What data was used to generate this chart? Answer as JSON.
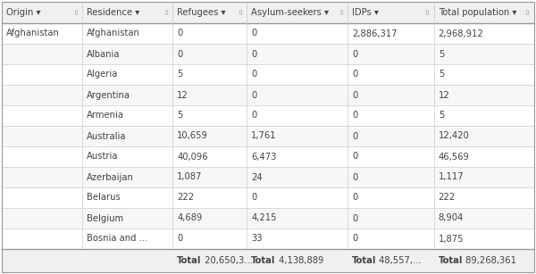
{
  "columns": [
    "Origin",
    "Residence",
    "Refugees",
    "Asylum-seekers",
    "IDPs",
    "Total population"
  ],
  "col_props": [
    0.138,
    0.155,
    0.127,
    0.173,
    0.148,
    0.172
  ],
  "header_bg": "#f0f0f0",
  "header_text_color": "#444444",
  "row_bg_even": "#ffffff",
  "row_bg_odd": "#f7f7f7",
  "footer_bg": "#f0f0f0",
  "border_color": "#cccccc",
  "thick_border_color": "#999999",
  "text_color": "#444444",
  "rows": [
    [
      "Afghanistan",
      "Afghanistan",
      "0",
      "0",
      "2,886,317",
      "2,968,912"
    ],
    [
      "",
      "Albania",
      "0",
      "0",
      "0",
      "5"
    ],
    [
      "",
      "Algeria",
      "5",
      "0",
      "0",
      "5"
    ],
    [
      "",
      "Argentina",
      "12",
      "0",
      "0",
      "12"
    ],
    [
      "",
      "Armenia",
      "5",
      "0",
      "0",
      "5"
    ],
    [
      "",
      "Australia",
      "10,659",
      "1,761",
      "0",
      "12,420"
    ],
    [
      "",
      "Austria",
      "40,096",
      "6,473",
      "0",
      "46,569"
    ],
    [
      "",
      "Azerbaijan",
      "1,087",
      "24",
      "0",
      "1,117"
    ],
    [
      "",
      "Belarus",
      "222",
      "0",
      "0",
      "222"
    ],
    [
      "",
      "Belgium",
      "4,689",
      "4,215",
      "0",
      "8,904"
    ],
    [
      "",
      "Bosnia and ...",
      "0",
      "33",
      "0",
      "1,875"
    ]
  ],
  "footer_items": [
    {
      "col": 2,
      "bold": "Total",
      "normal": " 20,650,3..."
    },
    {
      "col": 3,
      "bold": "Total",
      "normal": " 4,138,889"
    },
    {
      "col": 4,
      "bold": "Total",
      "normal": " 48,557,..."
    },
    {
      "col": 5,
      "bold": "Total",
      "normal": " 89,268,361"
    }
  ],
  "font_size": 7.2,
  "header_font_size": 7.2
}
